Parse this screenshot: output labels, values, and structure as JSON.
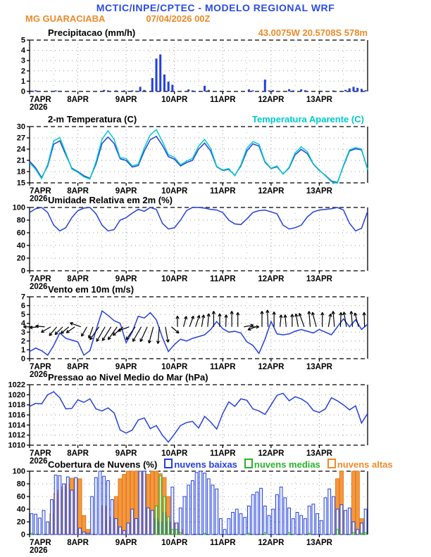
{
  "header": {
    "title": "MCTIC/INPE/CPTEC - MODELO REGIONAL WRF",
    "station": "MG GUARACIABA",
    "run_datetime": "07/04/2026 00Z",
    "location": "43.0075W 20.5708S 578m"
  },
  "colors": {
    "title_blue": "#2b4be0",
    "data_blue": "#2440dd",
    "cyan": "#00cccc",
    "orange": "#ef8a2a",
    "green": "#27b427",
    "grid_gray": "#999999",
    "low_cloud_fill": "#eef2ff",
    "mid_cloud_fill": "#e2f7e2",
    "high_cloud_fill": "#f5983f",
    "high_cloud_edge": "#e07c1e"
  },
  "x_axis": {
    "labels": [
      "7APR",
      "8APR",
      "9APR",
      "10APR",
      "11APR",
      "12APR",
      "13APR"
    ],
    "year": "2026",
    "t_start": 7,
    "t_end": 14
  },
  "chart_data": [
    {
      "id": "precipitation",
      "type": "bar",
      "title": "Precipitacao (mm/h)",
      "ylim": [
        0,
        5
      ],
      "yticks": [
        0,
        1,
        2,
        3,
        4,
        5
      ],
      "points_per_day": 12,
      "values": [
        0.08,
        0.1,
        0,
        0,
        0,
        0,
        0.1,
        0.07,
        0,
        0,
        0,
        0,
        0,
        0,
        0,
        0,
        0,
        0,
        0.15,
        0.1,
        0,
        0.1,
        0,
        0.1,
        0.05,
        0.1,
        0,
        0.45,
        0.15,
        0,
        1.3,
        3.2,
        3.6,
        1.65,
        0.95,
        0.65,
        0,
        0,
        0,
        0.2,
        0.1,
        0,
        0,
        0.55,
        0.15,
        0,
        0,
        0.07,
        0,
        0,
        0,
        0,
        0,
        0,
        0.2,
        0.1,
        0,
        0,
        1.15,
        0.1,
        0.12,
        0,
        0,
        0,
        0.22,
        0.1,
        0,
        0.2,
        0.12,
        0,
        0,
        0,
        0.08,
        0,
        0,
        0.1,
        0,
        0,
        0.15,
        0.3,
        0.45,
        0.35,
        0.25,
        0.12
      ]
    },
    {
      "id": "temperature",
      "type": "line",
      "title": "2-m Temperatura (C)",
      "ylim": [
        15,
        30
      ],
      "yticks": [
        15,
        18,
        21,
        24,
        27,
        30
      ],
      "points_per_day": 8,
      "series": [
        {
          "name": "2-m Temperatura (C)",
          "color": "blue",
          "values": [
            20.8,
            19.0,
            16.4,
            19.5,
            25.3,
            26.2,
            22.5,
            18.9,
            18.0,
            16.9,
            16.2,
            20.0,
            25.5,
            27.2,
            25.5,
            21.4,
            21.0,
            19.2,
            19.6,
            23.5,
            26.5,
            27.4,
            25.0,
            22.0,
            21.3,
            19.5,
            20.4,
            21.0,
            24.0,
            25.6,
            23.5,
            19.3,
            18.3,
            18.6,
            17.0,
            19.5,
            23.5,
            25.4,
            24.8,
            20.5,
            18.8,
            19.3,
            17.4,
            19.0,
            22.5,
            23.9,
            22.8,
            20.0,
            18.3,
            17.0,
            15.5,
            15.1,
            19.5,
            23.5,
            24.1,
            23.8,
            18.6
          ]
        },
        {
          "name": "Temperatura Aparente (C)",
          "color": "cyan",
          "values": [
            20.4,
            18.6,
            16.1,
            19.9,
            26.2,
            27.1,
            23.0,
            18.7,
            17.8,
            16.6,
            16.0,
            20.6,
            26.6,
            28.9,
            26.6,
            21.7,
            21.5,
            19.5,
            20.0,
            24.3,
            27.8,
            29.2,
            26.0,
            22.5,
            21.8,
            19.8,
            20.8,
            21.5,
            24.8,
            26.6,
            24.2,
            19.4,
            18.4,
            18.8,
            16.9,
            19.8,
            24.2,
            26.0,
            25.3,
            20.7,
            18.9,
            19.5,
            17.3,
            19.2,
            23.0,
            24.6,
            23.3,
            20.1,
            18.4,
            16.9,
            15.3,
            14.9,
            19.7,
            23.8,
            24.4,
            24.0,
            18.5
          ]
        }
      ]
    },
    {
      "id": "humidity",
      "type": "line",
      "title": "Umidade Relativa em 2m (%)",
      "ylim": [
        0,
        100
      ],
      "yticks": [
        0,
        20,
        40,
        60,
        80,
        100
      ],
      "points_per_day": 8,
      "series": [
        {
          "name": "Umidade Relativa em 2m (%)",
          "color": "blue",
          "values": [
            92,
            98,
            100,
            92,
            72,
            63,
            68,
            84,
            95,
            99,
            100,
            90,
            72,
            63,
            65,
            80,
            84,
            91,
            97,
            94,
            100,
            97,
            75,
            66,
            68,
            80,
            95,
            100,
            100,
            99,
            97,
            96,
            92,
            80,
            74,
            73,
            82,
            92,
            95,
            96,
            93,
            90,
            72,
            66,
            68,
            72,
            85,
            93,
            96,
            97,
            98,
            100,
            96,
            75,
            63,
            67,
            94
          ]
        }
      ]
    },
    {
      "id": "wind",
      "type": "wind",
      "title": "Vento em 10m (m/s)",
      "ylim": [
        0,
        7
      ],
      "yticks": [
        0,
        1,
        2,
        3,
        4,
        5,
        6,
        7
      ],
      "points_per_day": 8,
      "series": [
        {
          "name": "Vento em 10m (m/s)",
          "color": "blue",
          "values": [
            0.8,
            1.2,
            0.9,
            0.4,
            1.5,
            2.9,
            2.3,
            2.1,
            1.9,
            0.4,
            0.9,
            3.2,
            5.4,
            4.9,
            4.3,
            4.0,
            1.8,
            3.0,
            4.8,
            4.6,
            5.2,
            4.4,
            2.4,
            0.8,
            1.6,
            2.2,
            2.0,
            2.3,
            2.5,
            2.7,
            3.3,
            4.2,
            3.4,
            3.0,
            3.1,
            2.9,
            1.9,
            1.5,
            0.6,
            2.2,
            4.2,
            2.8,
            2.7,
            2.8,
            3.1,
            3.3,
            3.1,
            2.9,
            3.3,
            3.0,
            2.7,
            3.6,
            4.5,
            3.6,
            4.4,
            3.3,
            3.9
          ]
        }
      ],
      "arrows": {
        "baseline_value": 3.6,
        "dir_deg": [
          180,
          185,
          175,
          210,
          230,
          225,
          220,
          215,
          160,
          240,
          250,
          235,
          240,
          238,
          235,
          220,
          200,
          235,
          240,
          245,
          255,
          265,
          280,
          320,
          90,
          75,
          70,
          72,
          80,
          85,
          90,
          90,
          88,
          90,
          90,
          10,
          0,
          200,
          90,
          92,
          90,
          85,
          95,
          90,
          100,
          110,
          95,
          105,
          90,
          80,
          95,
          88,
          100,
          95,
          105,
          92
        ],
        "mag": [
          0.35,
          0.35,
          0.35,
          0.5,
          0.55,
          0.5,
          0.45,
          0.45,
          0.55,
          0.5,
          0.6,
          0.9,
          1.0,
          0.95,
          0.9,
          0.7,
          0.6,
          0.9,
          1.0,
          0.95,
          1.0,
          1.0,
          0.9,
          0.4,
          0.5,
          0.5,
          0.55,
          0.6,
          0.6,
          0.7,
          0.9,
          0.7,
          0.6,
          0.9,
          0.8,
          0.4,
          0.35,
          0.3,
          0.9,
          1.0,
          0.85,
          0.6,
          0.6,
          0.65,
          0.7,
          0.8,
          0.9,
          0.85,
          0.8,
          0.7,
          0.9,
          0.8,
          0.85,
          0.9,
          0.8,
          0.8
        ]
      }
    },
    {
      "id": "pressure",
      "type": "line",
      "title": "Pressao ao Nivel Medio do Mar (hPa)",
      "ylim": [
        1010,
        1022
      ],
      "yticks": [
        1010,
        1012,
        1014,
        1016,
        1018,
        1020,
        1022
      ],
      "points_per_day": 8,
      "series": [
        {
          "name": "Pressao ao Nivel Medio do Mar (hPa)",
          "color": "blue",
          "values": [
            1017.7,
            1018.3,
            1018.2,
            1020.0,
            1020.6,
            1019.4,
            1017.2,
            1017.3,
            1019.0,
            1018.5,
            1019.2,
            1017.2,
            1016.8,
            1017.4,
            1016.4,
            1013.0,
            1012.4,
            1013.0,
            1015.0,
            1015.4,
            1013.3,
            1013.9,
            1012.0,
            1010.6,
            1012.2,
            1013.9,
            1014.5,
            1014.7,
            1013.4,
            1015.7,
            1014.6,
            1013.2,
            1016.3,
            1018.6,
            1017.7,
            1019.2,
            1018.9,
            1017.2,
            1016.8,
            1016.1,
            1018.0,
            1019.9,
            1020.3,
            1018.8,
            1019.6,
            1019.2,
            1018.4,
            1016.9,
            1016.5,
            1017.2,
            1019.4,
            1018.8,
            1018.0,
            1017.0,
            1017.8,
            1014.4,
            1016.3
          ]
        }
      ]
    },
    {
      "id": "clouds",
      "type": "cloud",
      "title": "Cobertura de Nuvens (%)",
      "ylim": [
        0,
        100
      ],
      "yticks": [
        0,
        20,
        40,
        60,
        80,
        100
      ],
      "points_per_day": 12,
      "series": [
        {
          "name": "nuvens baixas",
          "color": "blue",
          "values": [
            33,
            32,
            26,
            38,
            20,
            55,
            94,
            93,
            80,
            91,
            70,
            90,
            10,
            4,
            2,
            60,
            90,
            100,
            92,
            85,
            55,
            25,
            12,
            6,
            18,
            40,
            25,
            100,
            100,
            42,
            38,
            25,
            20,
            35,
            20,
            75,
            18,
            42,
            60,
            78,
            85,
            98,
            100,
            97,
            88,
            78,
            72,
            25,
            8,
            25,
            35,
            40,
            33,
            27,
            45,
            63,
            67,
            73,
            45,
            30,
            40,
            63,
            75,
            58,
            42,
            25,
            35,
            30,
            25,
            45,
            48,
            33,
            22,
            58,
            72,
            60,
            40,
            47,
            38,
            42,
            20,
            8,
            18,
            40
          ]
        },
        {
          "name": "nuvens medias",
          "color": "green",
          "values": [
            2,
            0,
            0,
            0,
            0,
            0,
            0,
            0,
            0,
            0,
            0,
            0,
            0,
            0,
            0,
            0,
            0,
            0,
            0,
            0,
            0,
            0,
            0,
            0,
            0,
            0,
            0,
            0,
            0,
            0,
            0,
            45,
            93,
            60,
            28,
            8,
            8,
            3,
            0,
            0,
            0,
            0,
            0,
            2,
            0,
            0,
            0,
            0,
            0,
            0,
            0,
            0,
            0,
            0,
            2,
            0,
            0,
            0,
            3,
            0,
            0,
            0,
            0,
            0,
            3,
            0,
            0,
            0,
            0,
            2,
            0,
            0,
            0,
            0,
            0,
            0,
            8,
            0,
            0,
            0,
            3,
            0,
            2,
            3
          ]
        },
        {
          "name": "nuvens altas",
          "color": "orange",
          "values": [
            0,
            0,
            0,
            0,
            0,
            33,
            65,
            70,
            75,
            80,
            89,
            88,
            88,
            30,
            8,
            0,
            0,
            0,
            45,
            22,
            28,
            60,
            88,
            95,
            100,
            100,
            100,
            100,
            97,
            95,
            100,
            100,
            96,
            90,
            60,
            20,
            18,
            8,
            0,
            0,
            0,
            0,
            0,
            0,
            0,
            0,
            0,
            0,
            0,
            0,
            0,
            0,
            0,
            0,
            0,
            0,
            0,
            0,
            0,
            0,
            0,
            0,
            0,
            0,
            0,
            0,
            0,
            0,
            0,
            0,
            0,
            0,
            0,
            0,
            0,
            0,
            88,
            100,
            0,
            0,
            100,
            100,
            25,
            0
          ]
        }
      ]
    }
  ]
}
